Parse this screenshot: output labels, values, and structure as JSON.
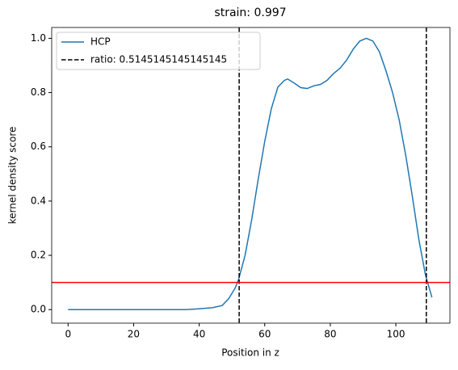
{
  "chart_data": {
    "type": "line",
    "title": "strain: 0.997",
    "x_label": "Position in z",
    "y_label": "kernel density score",
    "xlim": [
      -5,
      116.5
    ],
    "ylim": [
      -0.05,
      1.04
    ],
    "xticks": [
      0,
      20,
      40,
      60,
      80,
      100
    ],
    "yticks": [
      {
        "value": 0,
        "label": "0.0"
      },
      {
        "value": 0.2,
        "label": "0.2"
      },
      {
        "value": 0.4,
        "label": "0.4"
      },
      {
        "value": 0.6,
        "label": "0.6"
      },
      {
        "value": 0.8,
        "label": "0.8"
      },
      {
        "value": 1,
        "label": "1.0"
      }
    ],
    "legend": "upper left",
    "series": [
      {
        "name": "HCP",
        "color": "#1f77b4",
        "x": [
          0,
          10,
          20,
          30,
          36,
          40,
          44,
          47,
          49,
          51,
          52,
          54,
          56,
          58,
          60,
          62,
          64,
          66,
          67,
          69,
          71,
          73,
          75,
          77,
          79,
          81,
          83,
          85,
          87,
          89,
          91,
          93,
          95,
          97,
          99,
          101,
          103,
          105,
          107,
          109,
          111
        ],
        "values": [
          0,
          0,
          0,
          0,
          0,
          0.003,
          0.007,
          0.015,
          0.04,
          0.08,
          0.11,
          0.2,
          0.33,
          0.48,
          0.62,
          0.74,
          0.82,
          0.845,
          0.85,
          0.835,
          0.818,
          0.815,
          0.825,
          0.83,
          0.845,
          0.87,
          0.89,
          0.92,
          0.96,
          0.99,
          1.0,
          0.99,
          0.95,
          0.88,
          0.8,
          0.7,
          0.57,
          0.42,
          0.26,
          0.13,
          0.045
        ]
      }
    ],
    "vlines": {
      "name": "ratio: 0.5145145145145145",
      "color": "#000000",
      "values": [
        52.2,
        109.3
      ]
    },
    "hline": {
      "value": 0.1,
      "color": "#ff0000"
    }
  }
}
